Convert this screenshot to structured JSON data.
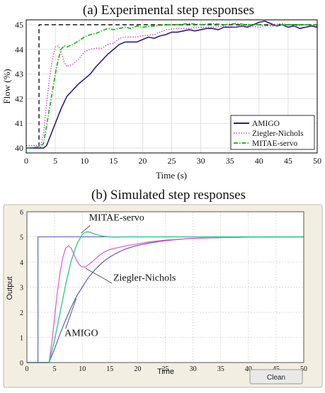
{
  "panels": {
    "a_title": "(a) Experimental step responses",
    "b_title": "(b) Simulated step responses",
    "clean_button": "Clean"
  },
  "colors": {
    "setpoint": "#000000",
    "amigo": "#2a1b8c",
    "ziegler": "#cc33cc",
    "mitae": "#22bb22",
    "sim_bg": "#f2efe2",
    "sim_setpoint": "#5555cc",
    "sim_amigo": "#5a5ad0",
    "sim_ziegler": "#e055d8",
    "sim_mitae": "#33cc88"
  },
  "chart_data": [
    {
      "type": "line",
      "title": "(a) Experimental step responses",
      "xlabel": "Time (s)",
      "ylabel": "Flow (%)",
      "xlim": [
        0,
        50
      ],
      "ylim": [
        39.8,
        45.2
      ],
      "xticks": [
        0,
        5,
        10,
        15,
        20,
        25,
        30,
        35,
        40,
        45,
        50
      ],
      "yticks": [
        40,
        41,
        42,
        43,
        44,
        45
      ],
      "grid": true,
      "legend_position": "bottom-right",
      "series": [
        {
          "name": "setpoint",
          "style": "dashed",
          "points": [
            [
              0,
              40
            ],
            [
              2.2,
              40
            ],
            [
              2.2,
              45
            ],
            [
              50,
              45
            ]
          ]
        },
        {
          "name": "AMIGO",
          "style": "solid",
          "points": [
            [
              0,
              40
            ],
            [
              3,
              40
            ],
            [
              3.5,
              40.1
            ],
            [
              4,
              40.4
            ],
            [
              5,
              41.0
            ],
            [
              6,
              41.6
            ],
            [
              7,
              42.1
            ],
            [
              8,
              42.35
            ],
            [
              9,
              42.6
            ],
            [
              10,
              42.8
            ],
            [
              11,
              43.0
            ],
            [
              12,
              43.3
            ],
            [
              13,
              43.55
            ],
            [
              14,
              43.8
            ],
            [
              15,
              44.0
            ],
            [
              16,
              44.2
            ],
            [
              17,
              44.3
            ],
            [
              18,
              44.3
            ],
            [
              19,
              44.3
            ],
            [
              20,
              44.4
            ],
            [
              21,
              44.5
            ],
            [
              22,
              44.45
            ],
            [
              23,
              44.55
            ],
            [
              24,
              44.6
            ],
            [
              25,
              44.7
            ],
            [
              26,
              44.7
            ],
            [
              27,
              44.75
            ],
            [
              28,
              44.8
            ],
            [
              29,
              44.75
            ],
            [
              30,
              44.8
            ],
            [
              31,
              44.85
            ],
            [
              32,
              44.85
            ],
            [
              33,
              44.8
            ],
            [
              34,
              44.9
            ],
            [
              35,
              44.9
            ],
            [
              36,
              44.9
            ],
            [
              37,
              44.95
            ],
            [
              38,
              44.9
            ],
            [
              39,
              45.0
            ],
            [
              40,
              45.1
            ],
            [
              41,
              45.15
            ],
            [
              42,
              45.05
            ],
            [
              43,
              44.95
            ],
            [
              44,
              45.0
            ],
            [
              45,
              44.9
            ],
            [
              46,
              44.95
            ],
            [
              47,
              44.85
            ],
            [
              48,
              44.9
            ],
            [
              49,
              44.95
            ],
            [
              50,
              44.9
            ]
          ]
        },
        {
          "name": "Ziegler-Nichols",
          "style": "dotted",
          "points": [
            [
              0,
              40.1
            ],
            [
              2.5,
              40.1
            ],
            [
              3,
              40.6
            ],
            [
              3.5,
              41.8
            ],
            [
              4,
              42.8
            ],
            [
              4.5,
              43.6
            ],
            [
              5,
              44.1
            ],
            [
              5.5,
              44.15
            ],
            [
              6,
              43.9
            ],
            [
              6.5,
              43.5
            ],
            [
              7,
              43.3
            ],
            [
              8,
              43.4
            ],
            [
              9,
              43.6
            ],
            [
              10,
              43.9
            ],
            [
              11,
              44.0
            ],
            [
              12,
              44.05
            ],
            [
              13,
              44.05
            ],
            [
              14,
              44.2
            ],
            [
              15,
              44.25
            ],
            [
              16,
              44.45
            ],
            [
              17,
              44.5
            ],
            [
              18,
              44.5
            ],
            [
              19,
              44.5
            ],
            [
              20,
              44.55
            ],
            [
              22,
              44.6
            ],
            [
              24,
              44.8
            ],
            [
              26,
              44.85
            ],
            [
              28,
              44.85
            ],
            [
              30,
              44.9
            ],
            [
              32,
              44.9
            ],
            [
              34,
              44.95
            ],
            [
              36,
              44.9
            ],
            [
              38,
              44.95
            ],
            [
              40,
              44.9
            ],
            [
              42,
              45.0
            ],
            [
              44,
              45.05
            ],
            [
              46,
              44.95
            ],
            [
              48,
              45.0
            ],
            [
              50,
              44.95
            ]
          ]
        },
        {
          "name": "MITAE-servo",
          "style": "dashdot",
          "points": [
            [
              0,
              40
            ],
            [
              2.5,
              40.05
            ],
            [
              3,
              40.2
            ],
            [
              3.5,
              40.9
            ],
            [
              4,
              41.6
            ],
            [
              4.5,
              42.3
            ],
            [
              5,
              43.0
            ],
            [
              5.5,
              43.6
            ],
            [
              6,
              44.0
            ],
            [
              6.5,
              44.15
            ],
            [
              7,
              44.1
            ],
            [
              8,
              44.2
            ],
            [
              9,
              44.35
            ],
            [
              10,
              44.5
            ],
            [
              11,
              44.6
            ],
            [
              12,
              44.65
            ],
            [
              13,
              44.75
            ],
            [
              14,
              44.85
            ],
            [
              15,
              44.8
            ],
            [
              16,
              44.85
            ],
            [
              17,
              44.9
            ],
            [
              18,
              44.85
            ],
            [
              19,
              44.95
            ],
            [
              20,
              44.9
            ],
            [
              22,
              44.95
            ],
            [
              24,
              45.0
            ],
            [
              26,
              45.0
            ],
            [
              28,
              45.05
            ],
            [
              30,
              45.0
            ],
            [
              32,
              45.05
            ],
            [
              34,
              45.0
            ],
            [
              36,
              45.05
            ],
            [
              38,
              45.0
            ],
            [
              40,
              45.0
            ],
            [
              42,
              44.95
            ],
            [
              44,
              45.0
            ],
            [
              46,
              45.0
            ],
            [
              48,
              45.0
            ],
            [
              50,
              45.0
            ]
          ]
        }
      ]
    },
    {
      "type": "line",
      "title": "(b) Simulated step responses",
      "xlabel": "Time",
      "ylabel": "Output",
      "xlim": [
        0,
        50
      ],
      "ylim": [
        0,
        6
      ],
      "xticks": [
        0,
        5,
        10,
        15,
        20,
        25,
        30,
        35,
        40,
        45,
        50
      ],
      "yticks": [
        0,
        1,
        2,
        3,
        4,
        5,
        6
      ],
      "grid": true,
      "annotations": [
        {
          "text": "MITAE-servo",
          "x": 11.2,
          "y": 5.65
        },
        {
          "text": "Ziegler-Nichols",
          "x": 15.6,
          "y": 3.25
        },
        {
          "text": "AMIGO",
          "x": 6.8,
          "y": 1.05
        }
      ],
      "series": [
        {
          "name": "setpoint",
          "points": [
            [
              0,
              0
            ],
            [
              2,
              0
            ],
            [
              2,
              5
            ],
            [
              50,
              5
            ]
          ]
        },
        {
          "name": "AMIGO",
          "points": [
            [
              0,
              0
            ],
            [
              4,
              0
            ],
            [
              5,
              0.55
            ],
            [
              6,
              1.15
            ],
            [
              7,
              1.7
            ],
            [
              8,
              2.2
            ],
            [
              9,
              2.65
            ],
            [
              10,
              3.0
            ],
            [
              11,
              3.35
            ],
            [
              12,
              3.62
            ],
            [
              13,
              3.85
            ],
            [
              14,
              4.05
            ],
            [
              15,
              4.2
            ],
            [
              16,
              4.33
            ],
            [
              17,
              4.44
            ],
            [
              18,
              4.53
            ],
            [
              19,
              4.6
            ],
            [
              20,
              4.66
            ],
            [
              22,
              4.75
            ],
            [
              24,
              4.82
            ],
            [
              26,
              4.87
            ],
            [
              28,
              4.91
            ],
            [
              30,
              4.94
            ],
            [
              35,
              4.97
            ],
            [
              40,
              4.99
            ],
            [
              50,
              5.0
            ]
          ]
        },
        {
          "name": "Ziegler-Nichols",
          "points": [
            [
              0,
              0
            ],
            [
              4,
              0
            ],
            [
              4.5,
              0.8
            ],
            [
              5,
              1.8
            ],
            [
              5.5,
              2.8
            ],
            [
              6,
              3.6
            ],
            [
              6.5,
              4.2
            ],
            [
              7,
              4.55
            ],
            [
              7.5,
              4.65
            ],
            [
              8,
              4.55
            ],
            [
              8.5,
              4.3
            ],
            [
              9,
              4.05
            ],
            [
              9.5,
              3.88
            ],
            [
              10,
              3.8
            ],
            [
              10.5,
              3.8
            ],
            [
              11,
              3.87
            ],
            [
              12,
              4.05
            ],
            [
              13,
              4.25
            ],
            [
              14,
              4.4
            ],
            [
              15,
              4.5
            ],
            [
              16,
              4.55
            ],
            [
              17,
              4.6
            ],
            [
              18,
              4.65
            ],
            [
              20,
              4.72
            ],
            [
              22,
              4.8
            ],
            [
              25,
              4.87
            ],
            [
              30,
              4.94
            ],
            [
              35,
              4.97
            ],
            [
              40,
              4.99
            ],
            [
              50,
              5.0
            ]
          ]
        },
        {
          "name": "MITAE-servo",
          "points": [
            [
              0,
              0
            ],
            [
              4,
              0
            ],
            [
              5,
              0.9
            ],
            [
              6,
              2.0
            ],
            [
              7,
              3.1
            ],
            [
              8,
              4.05
            ],
            [
              9,
              4.7
            ],
            [
              10,
              5.1
            ],
            [
              10.5,
              5.18
            ],
            [
              11,
              5.2
            ],
            [
              11.5,
              5.18
            ],
            [
              12,
              5.13
            ],
            [
              13,
              5.06
            ],
            [
              14,
              5.02
            ],
            [
              15,
              5.0
            ],
            [
              16,
              4.99
            ],
            [
              18,
              5.0
            ],
            [
              20,
              5.0
            ],
            [
              30,
              5.0
            ],
            [
              50,
              5.0
            ]
          ]
        }
      ]
    }
  ]
}
